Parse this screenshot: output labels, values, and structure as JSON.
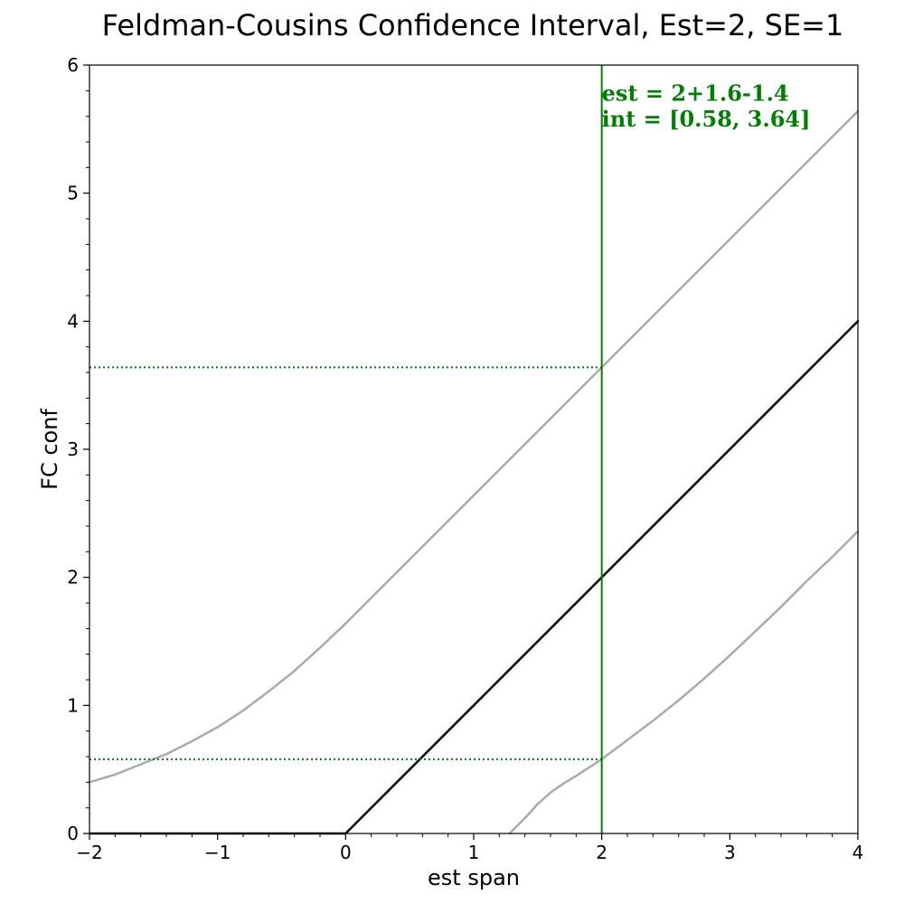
{
  "chart_data": {
    "type": "line",
    "title": "Feldman-Cousins Confidence Interval, Est=2, SE=1",
    "xlabel": "est span",
    "ylabel": "FC conf",
    "xlim": [
      -2,
      4
    ],
    "ylim": [
      0,
      6
    ],
    "xticks": [
      -2,
      -1,
      0,
      1,
      2,
      3,
      4
    ],
    "xtick_labels": [
      "−2",
      "−1",
      "0",
      "1",
      "2",
      "3",
      "4"
    ],
    "yticks": [
      0,
      1,
      2,
      3,
      4,
      5,
      6
    ],
    "ytick_labels": [
      "0",
      "1",
      "2",
      "3",
      "4",
      "5",
      "6"
    ],
    "grid": false,
    "colors": {
      "band": "#aaaaaa",
      "central": "#000000",
      "highlight": "#008000"
    },
    "series": [
      {
        "role": "upper-bound",
        "x": [
          -2,
          -1.8,
          -1.6,
          -1.4,
          -1.2,
          -1.0,
          -0.8,
          -0.6,
          -0.4,
          -0.2,
          0,
          0.2,
          0.4,
          0.6,
          0.8,
          1.0,
          1.5,
          2.0,
          2.5,
          3.0,
          3.5,
          4.0
        ],
        "y": [
          0.4,
          0.46,
          0.54,
          0.62,
          0.72,
          0.83,
          0.96,
          1.11,
          1.27,
          1.45,
          1.64,
          1.84,
          2.04,
          2.24,
          2.44,
          2.64,
          3.14,
          3.64,
          4.14,
          4.64,
          5.14,
          5.64
        ]
      },
      {
        "role": "central",
        "x": [
          -2,
          0,
          4
        ],
        "y": [
          0,
          0,
          4
        ]
      },
      {
        "role": "lower-bound",
        "x": [
          1.28,
          1.4,
          1.5,
          1.6,
          1.7,
          1.8,
          2.0,
          2.2,
          2.4,
          2.6,
          2.8,
          3.0,
          3.2,
          3.4,
          3.6,
          3.8,
          4.0
        ],
        "y": [
          0,
          0.12,
          0.23,
          0.32,
          0.39,
          0.45,
          0.58,
          0.73,
          0.88,
          1.04,
          1.21,
          1.39,
          1.58,
          1.77,
          1.97,
          2.16,
          2.36
        ]
      }
    ],
    "vline": {
      "x": 2
    },
    "hlines": [
      {
        "y": 3.64,
        "x_end": 2
      },
      {
        "y": 0.58,
        "x_end": 2
      }
    ],
    "annotations": [
      {
        "text": "est = 2+1.6-1.4",
        "x": 2,
        "y": 5.72
      },
      {
        "text": "int = [0.58, 3.64]",
        "x": 2,
        "y": 5.52
      }
    ]
  }
}
